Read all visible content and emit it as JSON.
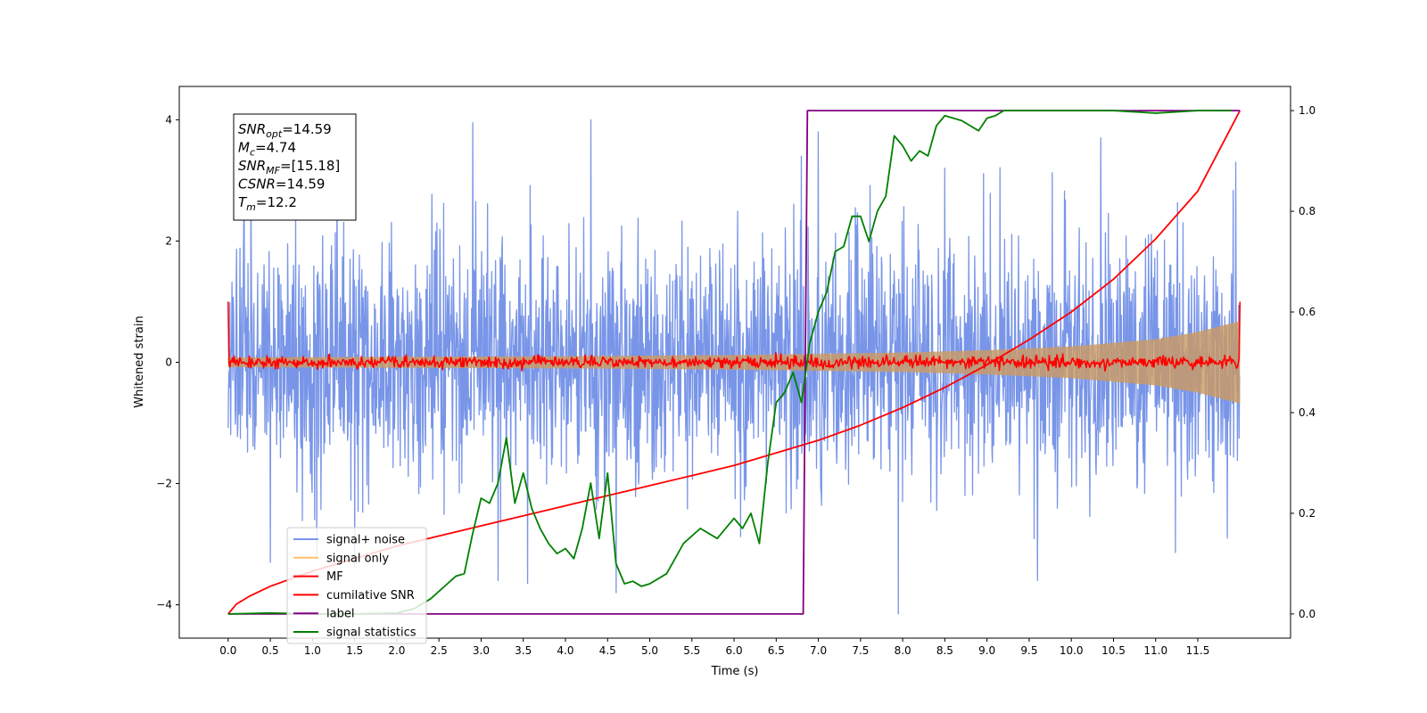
{
  "chart_data": {
    "type": "line",
    "title": "",
    "xlabel": "Time (s)",
    "ylabel": "Whitened strain",
    "ylabel_right": "",
    "xlim": [
      -0.58,
      12.6
    ],
    "ylim": [
      -4.55,
      4.55
    ],
    "ylim_right": [
      -0.048,
      1.048
    ],
    "x_ticks": [
      0.0,
      0.5,
      1.0,
      1.5,
      2.0,
      2.5,
      3.0,
      3.5,
      4.0,
      4.5,
      5.0,
      5.5,
      6.0,
      6.5,
      7.0,
      7.5,
      8.0,
      8.5,
      9.0,
      9.5,
      10.0,
      10.5,
      11.0,
      11.5
    ],
    "x_tick_labels": [
      "0.0",
      "0.5",
      "1.0",
      "1.5",
      "2.0",
      "2.5",
      "3.0",
      "3.5",
      "4.0",
      "4.5",
      "5.0",
      "5.5",
      "6.0",
      "6.5",
      "7.0",
      "7.5",
      "8.0",
      "8.5",
      "9.0",
      "9.5",
      "10.0",
      "10.5",
      "11.0",
      "11.5"
    ],
    "y_ticks": [
      -4,
      -2,
      0,
      2,
      4
    ],
    "y_tick_labels": [
      "−4",
      "−2",
      "0",
      "2",
      "4"
    ],
    "y_ticks_right": [
      0.0,
      0.2,
      0.4,
      0.6,
      0.8,
      1.0
    ],
    "y_tick_labels_right": [
      "0.0",
      "0.2",
      "0.4",
      "0.6",
      "0.8",
      "1.0"
    ],
    "grid": false,
    "legend_position": "lower-left",
    "annotation_lines": [
      {
        "label": "SNR",
        "sub": "opt",
        "value": "=14.59"
      },
      {
        "label": "M",
        "sub": "c",
        "value": "=4.74"
      },
      {
        "label": "SNR",
        "sub": "MF",
        "value": "=[15.18]"
      },
      {
        "label": "CSNR",
        "sub": "",
        "value": "=14.59"
      },
      {
        "label": "T",
        "sub": "m",
        "value": "=12.2"
      }
    ],
    "series": [
      {
        "name": "signal+ noise",
        "color": "#7895e8",
        "axis": "left",
        "kind": "noise",
        "x_range": [
          0.0,
          12.0
        ],
        "mean": 0.0,
        "std": 1.0,
        "extremes": [
          {
            "x": 0.27,
            "y": 3.2
          },
          {
            "x": 0.5,
            "y": -3.3
          },
          {
            "x": 1.05,
            "y": -3.2
          },
          {
            "x": 1.5,
            "y": -3.4
          },
          {
            "x": 2.9,
            "y": 3.95
          },
          {
            "x": 3.2,
            "y": -3.6
          },
          {
            "x": 3.55,
            "y": -3.65
          },
          {
            "x": 4.3,
            "y": 4.0
          },
          {
            "x": 4.6,
            "y": -3.8
          },
          {
            "x": 6.8,
            "y": 3.4
          },
          {
            "x": 7.0,
            "y": 3.8
          },
          {
            "x": 7.95,
            "y": -4.15
          },
          {
            "x": 8.5,
            "y": 3.2
          },
          {
            "x": 9.6,
            "y": -3.6
          },
          {
            "x": 10.35,
            "y": 3.7
          },
          {
            "x": 11.85,
            "y": -2.9
          },
          {
            "x": 11.95,
            "y": 3.3
          }
        ]
      },
      {
        "name": "signal only",
        "color": "#ffc06b",
        "axis": "left",
        "kind": "chirp-envelope",
        "envelope": [
          [
            0.0,
            0.08
          ],
          [
            2.0,
            0.09
          ],
          [
            4.0,
            0.1
          ],
          [
            6.0,
            0.12
          ],
          [
            8.0,
            0.16
          ],
          [
            9.0,
            0.2
          ],
          [
            10.0,
            0.26
          ],
          [
            11.0,
            0.38
          ],
          [
            11.5,
            0.5
          ],
          [
            12.0,
            0.68
          ]
        ]
      },
      {
        "name": "MF",
        "color": "#ff0000",
        "axis": "left",
        "kind": "noise",
        "x_range": [
          0.0,
          12.0
        ],
        "mean": 0.0,
        "std": 0.05,
        "endpoints": [
          [
            0.0,
            1.0
          ],
          [
            12.0,
            1.0
          ]
        ]
      },
      {
        "name": "cumilative SNR",
        "color": "#ff0000",
        "axis": "right",
        "kind": "line",
        "x": [
          0.0,
          0.1,
          0.25,
          0.5,
          1.0,
          1.5,
          2.0,
          2.5,
          3.0,
          3.5,
          4.0,
          4.5,
          5.0,
          5.5,
          6.0,
          6.5,
          7.0,
          7.5,
          8.0,
          8.5,
          9.0,
          9.5,
          10.0,
          10.5,
          11.0,
          11.5,
          12.0
        ],
        "y": [
          0.0,
          0.02,
          0.035,
          0.055,
          0.085,
          0.11,
          0.135,
          0.155,
          0.175,
          0.195,
          0.215,
          0.235,
          0.255,
          0.275,
          0.295,
          0.32,
          0.345,
          0.375,
          0.41,
          0.45,
          0.495,
          0.545,
          0.6,
          0.665,
          0.745,
          0.84,
          1.0
        ]
      },
      {
        "name": "label",
        "color": "#800080",
        "axis": "right",
        "kind": "line",
        "x": [
          0.0,
          6.82,
          6.87,
          12.0
        ],
        "y": [
          0.0,
          0.0,
          1.0,
          1.0
        ]
      },
      {
        "name": "signal statistics",
        "color": "#008000",
        "axis": "right",
        "kind": "line",
        "x": [
          0.0,
          0.5,
          1.0,
          1.5,
          2.0,
          2.2,
          2.4,
          2.6,
          2.7,
          2.8,
          2.9,
          3.0,
          3.1,
          3.2,
          3.3,
          3.4,
          3.5,
          3.6,
          3.7,
          3.8,
          3.9,
          4.0,
          4.1,
          4.2,
          4.3,
          4.4,
          4.5,
          4.6,
          4.7,
          4.8,
          4.9,
          5.0,
          5.2,
          5.4,
          5.6,
          5.8,
          6.0,
          6.1,
          6.2,
          6.3,
          6.4,
          6.5,
          6.6,
          6.7,
          6.8,
          6.9,
          7.0,
          7.1,
          7.2,
          7.3,
          7.4,
          7.5,
          7.6,
          7.7,
          7.8,
          7.9,
          8.0,
          8.1,
          8.2,
          8.3,
          8.4,
          8.5,
          8.7,
          8.9,
          9.0,
          9.1,
          9.2,
          9.4,
          9.6,
          9.8,
          10.0,
          10.5,
          11.0,
          11.5,
          11.9
        ],
        "y": [
          0.0,
          0.002,
          0.0,
          0.0,
          0.002,
          0.01,
          0.03,
          0.06,
          0.075,
          0.08,
          0.16,
          0.23,
          0.22,
          0.26,
          0.35,
          0.22,
          0.28,
          0.21,
          0.17,
          0.14,
          0.12,
          0.13,
          0.11,
          0.17,
          0.26,
          0.15,
          0.28,
          0.1,
          0.06,
          0.065,
          0.055,
          0.06,
          0.08,
          0.14,
          0.17,
          0.15,
          0.19,
          0.17,
          0.2,
          0.14,
          0.3,
          0.42,
          0.44,
          0.48,
          0.42,
          0.54,
          0.6,
          0.64,
          0.72,
          0.73,
          0.79,
          0.79,
          0.74,
          0.8,
          0.83,
          0.95,
          0.93,
          0.9,
          0.92,
          0.91,
          0.97,
          0.99,
          0.98,
          0.96,
          0.985,
          0.99,
          1.0,
          1.0,
          1.0,
          1.0,
          1.0,
          1.0,
          0.995,
          1.0,
          1.0
        ]
      }
    ]
  }
}
